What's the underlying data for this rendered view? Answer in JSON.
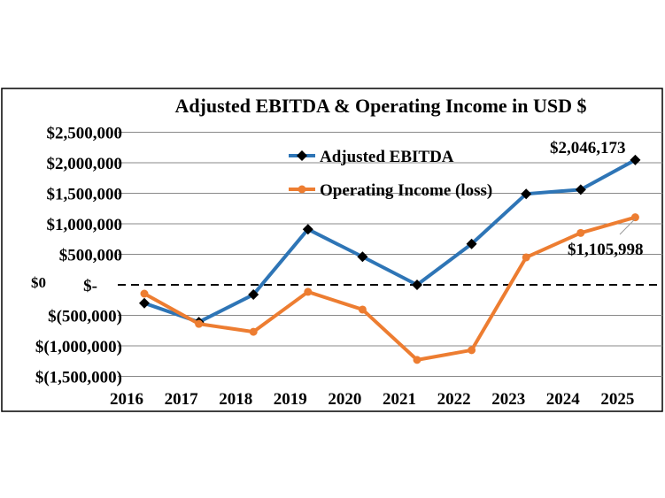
{
  "chart_data": {
    "type": "line",
    "title": "Adjusted EBITDA & Operating Income in USD $",
    "categories": [
      "2016",
      "2017",
      "2018",
      "2019",
      "2020",
      "2021",
      "2022",
      "2023",
      "2024",
      "2025"
    ],
    "series": [
      {
        "name": "Adjusted EBITDA",
        "color": "#2E75B6",
        "marker": "diamond",
        "values": [
          -300000,
          -610000,
          -160000,
          910000,
          460000,
          0,
          670000,
          1490000,
          1560000,
          2046173
        ]
      },
      {
        "name": "Operating Income (loss)",
        "color": "#ED7D31",
        "marker": "circle",
        "values": [
          -145000,
          -640000,
          -770000,
          -115000,
          -405000,
          -1230000,
          -1070000,
          450000,
          850000,
          1105998
        ]
      }
    ],
    "ylim": [
      -1500000,
      2500000
    ],
    "yticks": [
      2500000,
      2000000,
      1500000,
      1000000,
      500000,
      0,
      -500000,
      -1000000,
      -1500000
    ],
    "ytick_labels": [
      "$2,500,000",
      "$2,000,000",
      "$1,500,000",
      "$1,000,000",
      "$500,000",
      "$-",
      "$(500,000)",
      "$(1,000,000)",
      "$(1,500,000)"
    ],
    "zero_line_label": "$0",
    "zero_line_style": "dashed",
    "grid": true,
    "legend_placement": "top-left inside",
    "data_labels": [
      {
        "series": 0,
        "category": "2025",
        "text": "$2,046,173"
      },
      {
        "series": 1,
        "category": "2025",
        "text": "$1,105,998"
      }
    ]
  }
}
